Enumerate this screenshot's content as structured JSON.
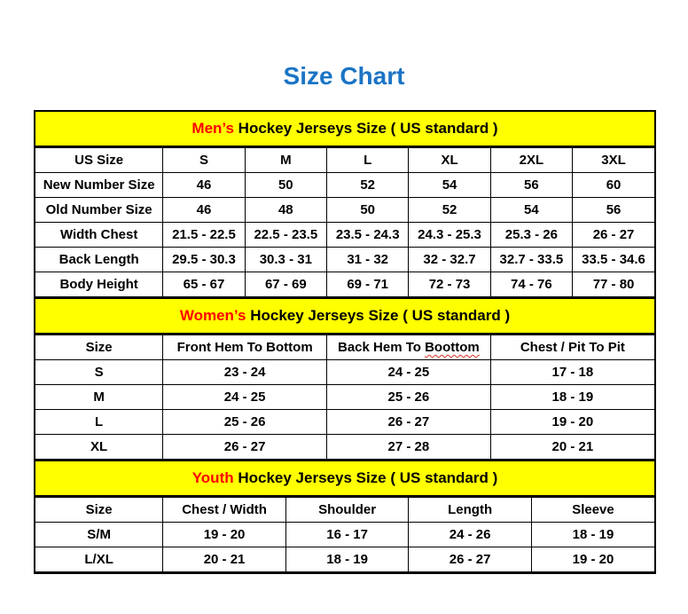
{
  "page_title": "Size Chart",
  "colors": {
    "title_blue": "#1B74C5",
    "accent_red": "#FF0000",
    "banner_yellow": "#FFFF00",
    "border_black": "#000000",
    "squiggle_red": "#D93025"
  },
  "sections": [
    {
      "id": "mens",
      "banner_accent": "Men’s",
      "banner_rest": " Hockey Jerseys Size ( US standard )",
      "columns": [
        {
          "label": "US Size"
        },
        {
          "label": "S"
        },
        {
          "label": "M"
        },
        {
          "label": "L"
        },
        {
          "label": "XL"
        },
        {
          "label": "2XL"
        },
        {
          "label": "3XL"
        }
      ],
      "rows": [
        {
          "label": "New Number Size",
          "values": [
            "46",
            "50",
            "52",
            "54",
            "56",
            "60"
          ]
        },
        {
          "label": "Old Number Size",
          "values": [
            "46",
            "48",
            "50",
            "52",
            "54",
            "56"
          ]
        },
        {
          "label": "Width Chest",
          "values": [
            "21.5 - 22.5",
            "22.5 - 23.5",
            "23.5 - 24.3",
            "24.3 - 25.3",
            "25.3 - 26",
            "26 - 27"
          ]
        },
        {
          "label": "Back Length",
          "values": [
            "29.5 - 30.3",
            "30.3 - 31",
            "31 - 32",
            "32 - 32.7",
            "32.7 - 33.5",
            "33.5 - 34.6"
          ]
        },
        {
          "label": "Body Height",
          "values": [
            "65 - 67",
            "67 - 69",
            "69 - 71",
            "72 - 73",
            "74 - 76",
            "77 - 80"
          ]
        }
      ]
    },
    {
      "id": "womens",
      "banner_accent": "Women’s",
      "banner_rest": " Hockey Jerseys Size ( US standard )",
      "columns": [
        {
          "label": "Size"
        },
        {
          "label": "Front Hem To Bottom"
        },
        {
          "label": "Back Hem To Boottom",
          "underline_word": "Boottom"
        },
        {
          "label": "Chest / Pit To Pit"
        }
      ],
      "rows": [
        {
          "label": "S",
          "values": [
            "23 - 24",
            "24 - 25",
            "17 - 18"
          ]
        },
        {
          "label": "M",
          "values": [
            "24 - 25",
            "25 - 26",
            "18 - 19"
          ]
        },
        {
          "label": "L",
          "values": [
            "25 - 26",
            "26 - 27",
            "19 - 20"
          ]
        },
        {
          "label": "XL",
          "values": [
            "26 - 27",
            "27 - 28",
            "20 - 21"
          ]
        }
      ]
    },
    {
      "id": "youth",
      "banner_accent": "Youth",
      "banner_rest": " Hockey Jerseys Size ( US standard )",
      "columns": [
        {
          "label": "Size"
        },
        {
          "label": "Chest / Width"
        },
        {
          "label": "Shoulder"
        },
        {
          "label": "Length"
        },
        {
          "label": "Sleeve"
        }
      ],
      "rows": [
        {
          "label": "S/M",
          "values": [
            "19 - 20",
            "16 - 17",
            "24 - 26",
            "18 - 19"
          ]
        },
        {
          "label": "L/XL",
          "values": [
            "20 - 21",
            "18 - 19",
            "26 - 27",
            "19 - 20"
          ]
        }
      ]
    }
  ]
}
